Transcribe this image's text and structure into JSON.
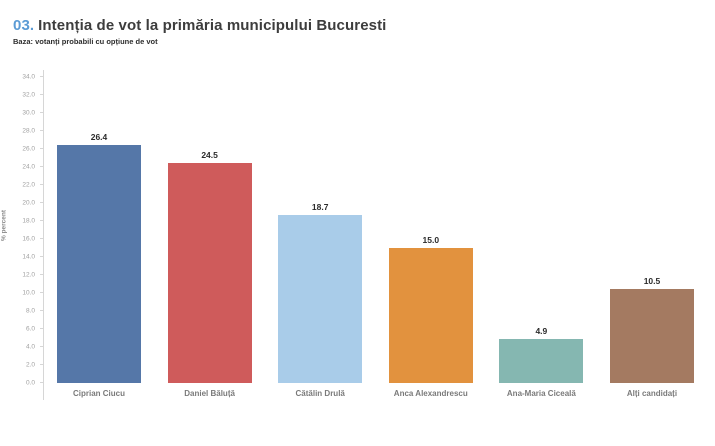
{
  "header": {
    "number": "03.",
    "title": "Intenția de vot la primăria municipului Bucuresti",
    "subtitle": "Baza: votanți probabili cu opțiune de vot"
  },
  "chart_data": {
    "type": "bar",
    "title": "03. Intenția de vot la primăria municipului Bucuresti",
    "subtitle": "Baza: votanți probabili cu opțiune de vot",
    "categories": [
      "Ciprian Ciucu",
      "Daniel Băluță",
      "Cătălin Drulă",
      "Anca Alexandrescu",
      "Ana-Maria Ciceală",
      "Alți candidați"
    ],
    "values": [
      26.4,
      24.5,
      18.7,
      15.0,
      4.9,
      10.5
    ],
    "value_labels": [
      "26.4",
      "24.5",
      "18.7",
      "15.0",
      "4.9",
      "10.5"
    ],
    "bar_colors": [
      "#5577a8",
      "#cf5b5b",
      "#a9cce9",
      "#e2923e",
      "#85b7b1",
      "#a47a61"
    ],
    "xlabel": "",
    "ylabel": "% percent",
    "ylim": [
      0,
      34
    ],
    "ytick_step": 2,
    "ytick_decimals": 1,
    "grid": false,
    "legend": "none"
  },
  "colors": {
    "title_accent": "#5b9bd5",
    "title_text": "#3d3d3d",
    "axis_line": "#d6d6d6",
    "tick_label": "#a0a0a0",
    "category_label": "#7a7a7a",
    "value_label": "#2b2b2b",
    "background": "#ffffff"
  }
}
